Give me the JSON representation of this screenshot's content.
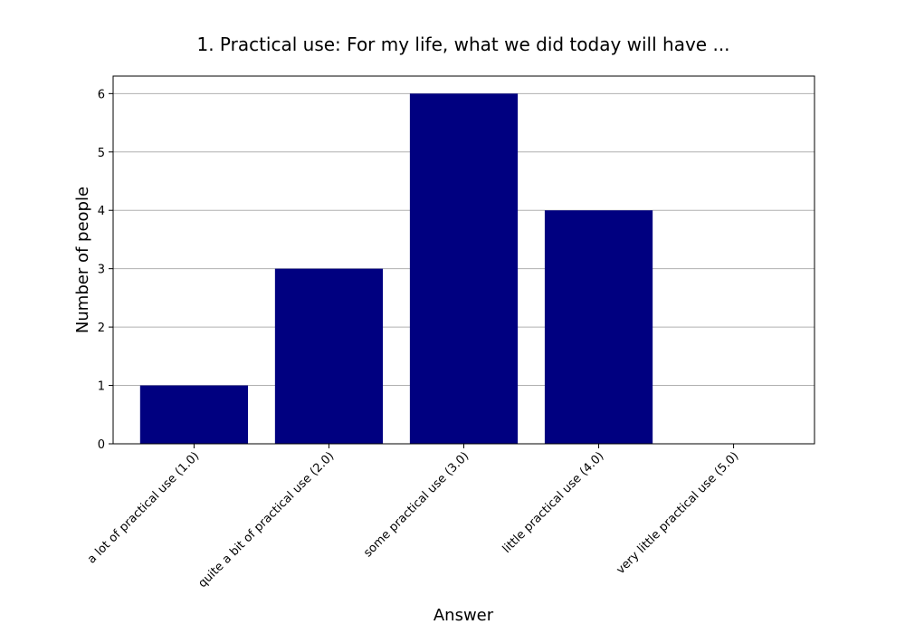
{
  "chart_data": {
    "type": "bar",
    "title": "1. Practical use: For my life, what we did today will have ...",
    "xlabel": "Answer",
    "ylabel": "Number of people",
    "categories": [
      "a lot of practical use (1.0)",
      "quite a bit of practical use (2.0)",
      "some practical use (3.0)",
      "little practical use (4.0)",
      "very little practical use (5.0)"
    ],
    "values": [
      1,
      3,
      6,
      4,
      0
    ],
    "ylim": [
      0,
      6.3
    ],
    "yticks": [
      0,
      1,
      2,
      3,
      4,
      5,
      6
    ],
    "grid": true,
    "bar_color": "#000080"
  }
}
